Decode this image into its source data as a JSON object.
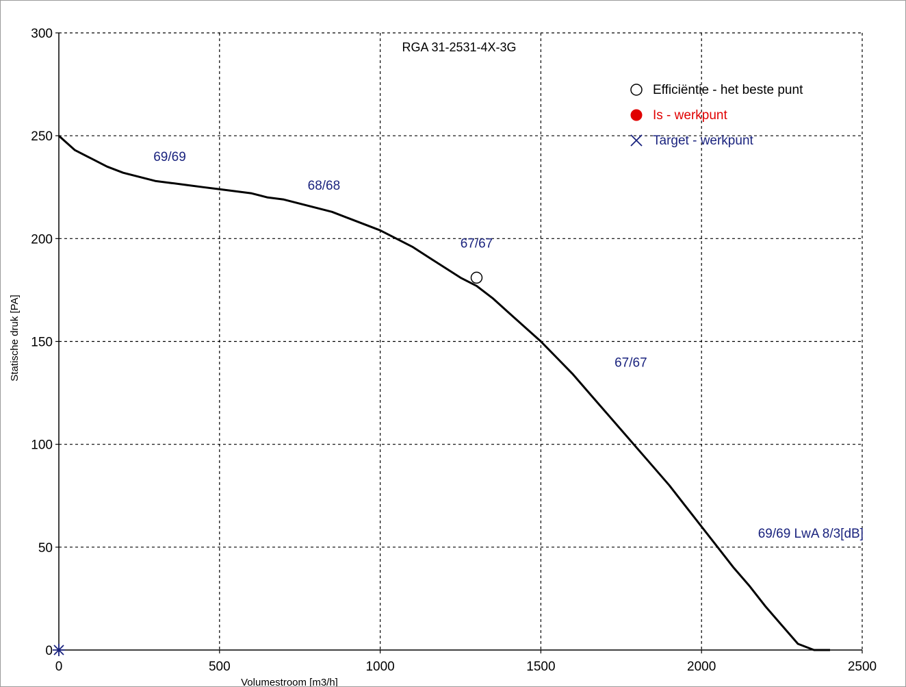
{
  "chart_data": {
    "type": "line",
    "title": "RGA 31-2531-4X-3G",
    "xlabel": "Volumestroom [m3/h]",
    "ylabel": "Statische druk [PA]",
    "xlim": [
      0,
      2500
    ],
    "ylim": [
      0,
      300
    ],
    "x_ticks": [
      0,
      500,
      1000,
      1500,
      2000,
      2500
    ],
    "y_ticks": [
      0,
      50,
      100,
      150,
      200,
      250,
      300
    ],
    "grid": true,
    "grid_style": "dashed",
    "legend_position": "top-right",
    "series": [
      {
        "x": [
          0,
          50,
          100,
          150,
          200,
          250,
          300,
          350,
          400,
          450,
          500,
          550,
          600,
          650,
          700,
          750,
          800,
          850,
          900,
          950,
          1000,
          1050,
          1100,
          1150,
          1200,
          1250,
          1300,
          1350,
          1400,
          1450,
          1500,
          1550,
          1600,
          1650,
          1700,
          1750,
          1800,
          1850,
          1900,
          1950,
          2000,
          2050,
          2100,
          2150,
          2200,
          2250,
          2300,
          2350,
          2400
        ],
        "y": [
          250,
          243,
          239,
          235,
          232,
          230,
          228,
          227,
          226,
          225,
          224,
          223,
          222,
          220,
          219,
          217,
          215,
          213,
          210,
          207,
          204,
          200,
          196,
          191,
          186,
          181,
          177,
          171,
          164,
          157,
          150,
          142,
          134,
          125,
          116,
          107,
          98,
          89,
          80,
          70,
          60,
          50,
          40,
          31,
          21,
          12,
          3,
          0,
          0
        ],
        "color": "#000000"
      }
    ],
    "markers": [
      {
        "label": "Efficiëntie - het beste punt",
        "x": 1300,
        "y": 181,
        "symbol": "open-circle",
        "color": "#000000"
      },
      {
        "label": "Target - werkpunt",
        "x": 0,
        "y": 0,
        "symbol": "x-star",
        "color": "#1a237e"
      }
    ],
    "legend": [
      {
        "label": "Efficiëntie - het beste punt",
        "symbol": "open-circle",
        "color": "#000000"
      },
      {
        "label": "Is - werkpunt",
        "symbol": "filled-circle",
        "color": "#e00000"
      },
      {
        "label": "Target - werkpunt",
        "symbol": "x",
        "color": "#1a237e"
      }
    ],
    "annotations": [
      {
        "text": "69/69",
        "x": 345,
        "y": 240,
        "color": "#1a237e"
      },
      {
        "text": "68/68",
        "x": 825,
        "y": 226,
        "color": "#1a237e"
      },
      {
        "text": "67/67",
        "x": 1300,
        "y": 198,
        "color": "#1a237e"
      },
      {
        "text": "67/67",
        "x": 1780,
        "y": 140,
        "color": "#1a237e"
      },
      {
        "text": "69/69 LwA 8/3[dB]",
        "x": 2340,
        "y": 57,
        "color": "#1a237e"
      }
    ]
  }
}
